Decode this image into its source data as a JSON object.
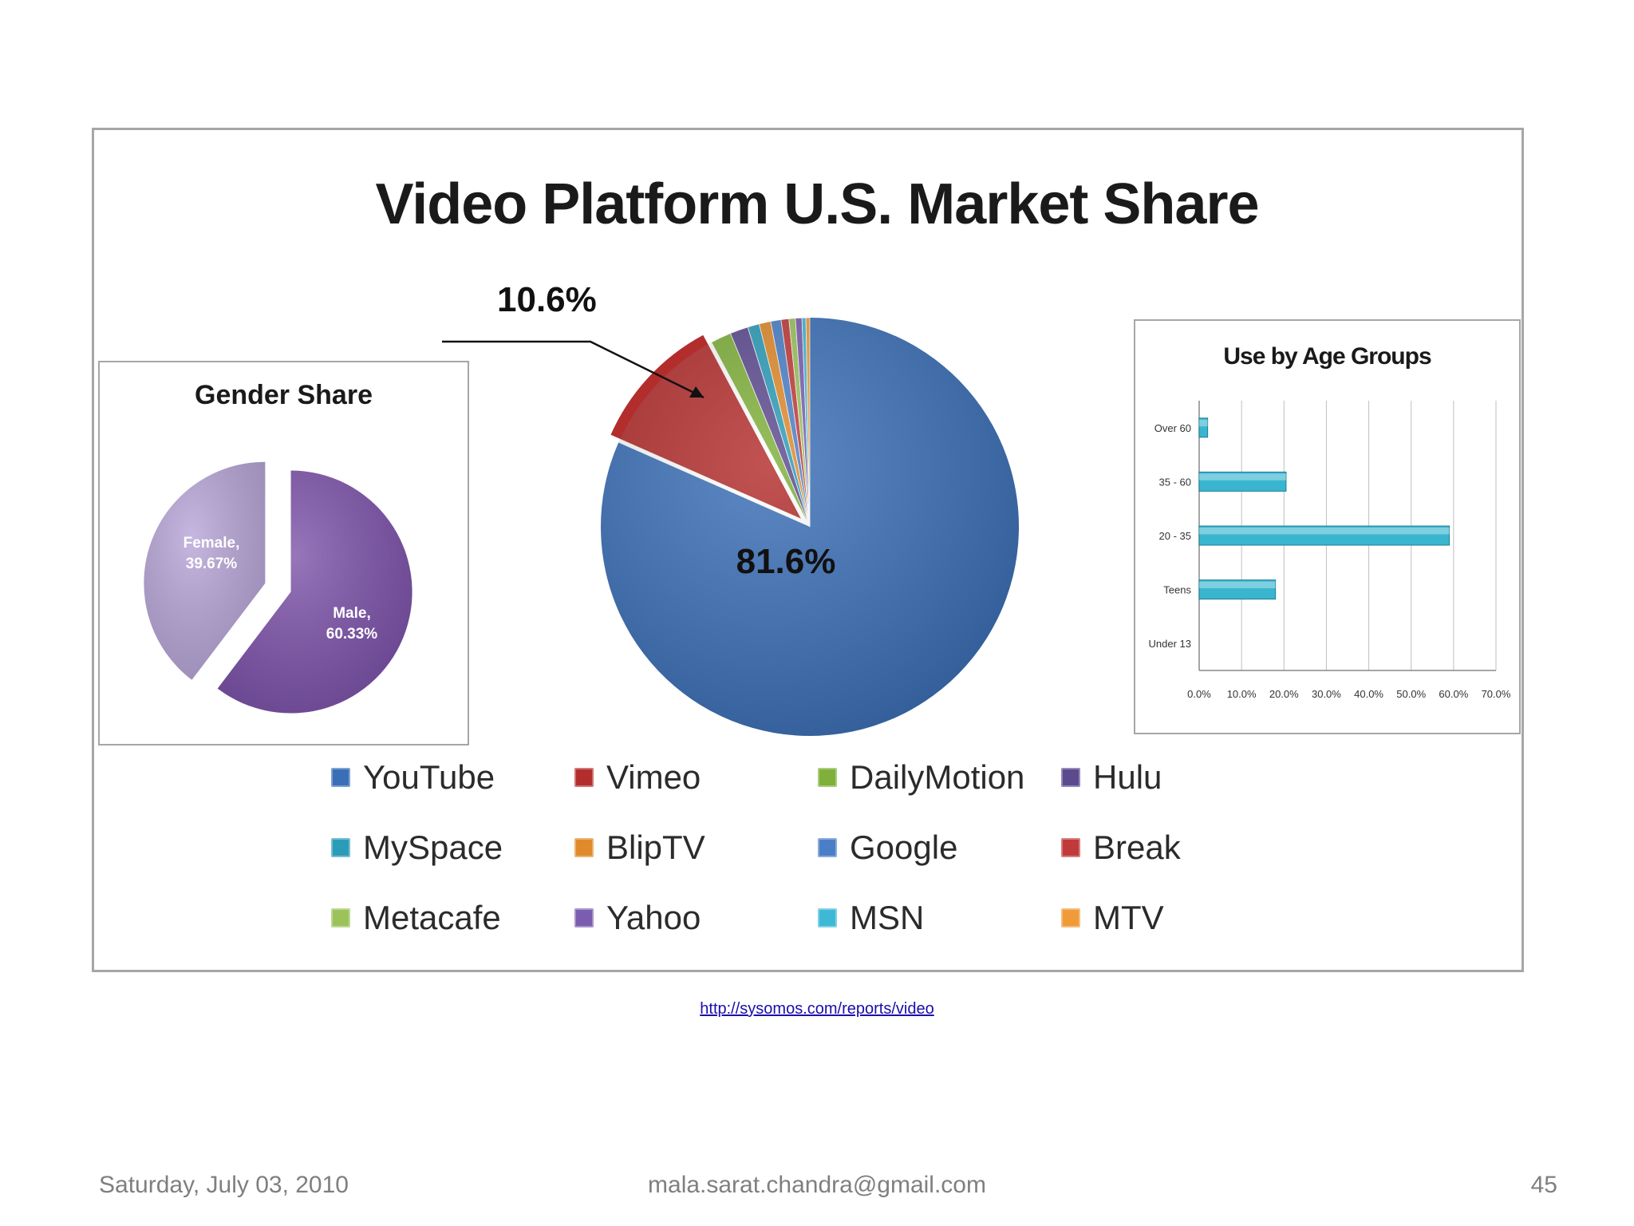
{
  "slide": {
    "source_link": "http://sysomos.com/reports/video",
    "footer_date": "Saturday, July 03, 2010",
    "footer_email": "mala.sarat.chandra@gmail.com",
    "page_number": "45"
  },
  "chart_data": [
    {
      "type": "pie",
      "title": "Video Platform U.S. Market Share",
      "categories": [
        "YouTube",
        "Vimeo",
        "DailyMotion",
        "Hulu",
        "MySpace",
        "BlipTV",
        "Google",
        "Break",
        "Metacafe",
        "Yahoo",
        "MSN",
        "MTV"
      ],
      "values": [
        81.6,
        10.6,
        1.6,
        1.4,
        0.9,
        0.9,
        0.8,
        0.6,
        0.5,
        0.5,
        0.3,
        0.3
      ],
      "colors": [
        "#3a6fb7",
        "#b32d2d",
        "#7fb03a",
        "#5c4a8f",
        "#2a9cb8",
        "#e08a2a",
        "#4a7fc8",
        "#c03a3a",
        "#9bc35a",
        "#7a5cb0",
        "#3fb8d6",
        "#f09a3a"
      ],
      "data_labels": {
        "YouTube": "81.6%",
        "Vimeo": "10.6%"
      },
      "legend_position": "bottom"
    },
    {
      "type": "pie",
      "title": "Gender Share",
      "categories": [
        "Female",
        "Male"
      ],
      "values": [
        39.67,
        60.33
      ],
      "data_labels": [
        "Female,",
        "39.67%",
        "Male,",
        "60.33%"
      ],
      "colors": [
        "#b5a3d6",
        "#7a4fa8"
      ]
    },
    {
      "type": "bar",
      "orientation": "horizontal",
      "title": "Use by Age Groups",
      "categories": [
        "Over 60",
        "35 - 60",
        "20 - 35",
        "Teens",
        "Under 13"
      ],
      "values": [
        2.0,
        20.5,
        59.0,
        18.0,
        0.0
      ],
      "xlim": [
        0,
        70
      ],
      "x_ticks": [
        "0.0%",
        "10.0%",
        "20.0%",
        "30.0%",
        "40.0%",
        "50.0%",
        "60.0%",
        "70.0%"
      ],
      "grid": true,
      "bar_color": "#3ab5d0"
    }
  ]
}
